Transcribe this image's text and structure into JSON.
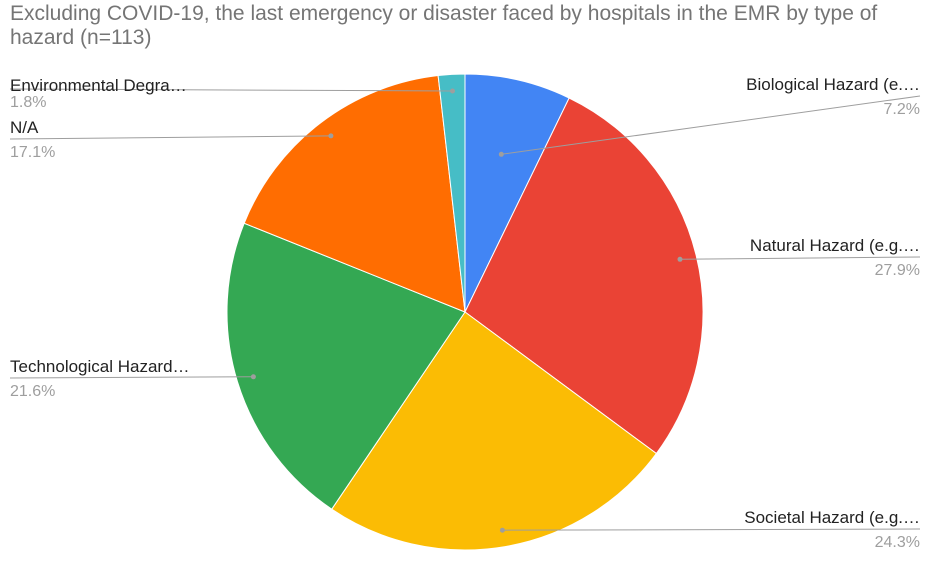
{
  "chart_data": {
    "type": "pie",
    "title": "Excluding COVID-19, the last emergency or disaster faced by hospitals in the EMR by type of hazard (n=113)",
    "legend": "none",
    "slices": [
      {
        "label": "Biological Hazard (e.…",
        "value": 7.2,
        "value_label": "7.2%",
        "color": "#4285F4"
      },
      {
        "label": "Natural Hazard (e.g.…",
        "value": 27.9,
        "value_label": "27.9%",
        "color": "#EA4335"
      },
      {
        "label": "Societal Hazard (e.g.…",
        "value": 24.3,
        "value_label": "24.3%",
        "color": "#FBBC04"
      },
      {
        "label": "Technological Hazard…",
        "value": 21.6,
        "value_label": "21.6%",
        "color": "#34A853"
      },
      {
        "label": "N/A",
        "value": 17.1,
        "value_label": "17.1%",
        "color": "#FF6D01"
      },
      {
        "label": "Environmental Degra…",
        "value": 1.8,
        "value_label": "1.8%",
        "color": "#46BDC6"
      }
    ]
  }
}
